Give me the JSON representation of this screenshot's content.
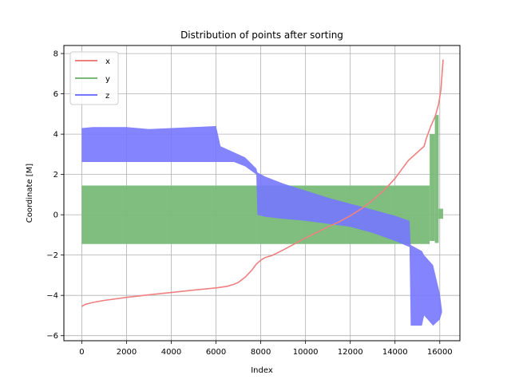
{
  "chart_data": {
    "type": "line",
    "title": "Distribution of points after sorting",
    "xlabel": "Index",
    "ylabel": "Coordinate [M]",
    "xlim": [
      -800,
      16900
    ],
    "ylim": [
      -6.25,
      8.4
    ],
    "xticks": [
      0,
      2000,
      4000,
      6000,
      8000,
      10000,
      12000,
      14000,
      16000
    ],
    "yticks": [
      -6,
      -4,
      -2,
      0,
      2,
      4,
      6,
      8
    ],
    "grid": true,
    "legend_position": "top-left",
    "series": [
      {
        "name": "x",
        "color": "#f08080",
        "style": "line",
        "points": [
          [
            0,
            -4.55
          ],
          [
            150,
            -4.45
          ],
          [
            500,
            -4.35
          ],
          [
            1000,
            -4.25
          ],
          [
            2000,
            -4.1
          ],
          [
            3000,
            -3.97
          ],
          [
            4000,
            -3.86
          ],
          [
            5000,
            -3.74
          ],
          [
            6000,
            -3.63
          ],
          [
            6500,
            -3.55
          ],
          [
            6800,
            -3.45
          ],
          [
            7000,
            -3.35
          ],
          [
            7300,
            -3.1
          ],
          [
            7600,
            -2.75
          ],
          [
            7800,
            -2.45
          ],
          [
            8000,
            -2.25
          ],
          [
            8200,
            -2.12
          ],
          [
            8500,
            -2.02
          ],
          [
            9000,
            -1.75
          ],
          [
            9500,
            -1.45
          ],
          [
            10000,
            -1.15
          ],
          [
            10500,
            -0.88
          ],
          [
            11000,
            -0.6
          ],
          [
            11500,
            -0.35
          ],
          [
            12000,
            -0.05
          ],
          [
            12500,
            0.3
          ],
          [
            13000,
            0.72
          ],
          [
            13500,
            1.2
          ],
          [
            14000,
            1.8
          ],
          [
            14300,
            2.25
          ],
          [
            14600,
            2.7
          ],
          [
            15000,
            3.1
          ],
          [
            15300,
            3.4
          ],
          [
            15400,
            3.8
          ],
          [
            15600,
            4.4
          ],
          [
            15800,
            4.9
          ],
          [
            15950,
            5.5
          ],
          [
            16050,
            6.2
          ],
          [
            16150,
            7.7
          ]
        ]
      },
      {
        "name": "y",
        "color": "#78bb78",
        "style": "band",
        "segments": [
          {
            "x0": 0,
            "x1": 15550,
            "low": -1.45,
            "high": 1.45
          },
          {
            "x0": 15550,
            "x1": 15780,
            "low": -1.3,
            "high": 4.0
          },
          {
            "x0": 15780,
            "x1": 15950,
            "low": -1.4,
            "high": 4.95
          },
          {
            "x0": 15950,
            "x1": 16150,
            "low": -0.2,
            "high": 0.3
          }
        ]
      },
      {
        "name": "z",
        "color": "#7777ff",
        "style": "band",
        "profile": [
          [
            0,
            2.62,
            4.3
          ],
          [
            500,
            2.62,
            4.35
          ],
          [
            2000,
            2.62,
            4.35
          ],
          [
            3000,
            2.62,
            4.25
          ],
          [
            4000,
            2.62,
            4.3
          ],
          [
            5000,
            2.62,
            4.35
          ],
          [
            6000,
            2.62,
            4.4
          ],
          [
            6200,
            2.62,
            3.4
          ],
          [
            6800,
            2.62,
            3.1
          ],
          [
            7300,
            2.4,
            2.85
          ],
          [
            7800,
            2.0,
            2.3
          ],
          [
            7850,
            0.0,
            2.1
          ],
          [
            8200,
            -0.1,
            1.9
          ],
          [
            9000,
            -0.2,
            1.55
          ],
          [
            10000,
            -0.3,
            1.2
          ],
          [
            11000,
            -0.45,
            0.85
          ],
          [
            12000,
            -0.6,
            0.55
          ],
          [
            13000,
            -0.9,
            0.25
          ],
          [
            14000,
            -1.3,
            -0.05
          ],
          [
            14650,
            -1.6,
            -0.3
          ],
          [
            14700,
            -5.5,
            -1.5
          ],
          [
            15200,
            -5.5,
            -1.8
          ],
          [
            15300,
            -5.0,
            -2.0
          ],
          [
            15700,
            -5.5,
            -2.5
          ],
          [
            16000,
            -5.2,
            -3.9
          ],
          [
            16100,
            -4.85,
            -4.75
          ]
        ]
      }
    ]
  }
}
